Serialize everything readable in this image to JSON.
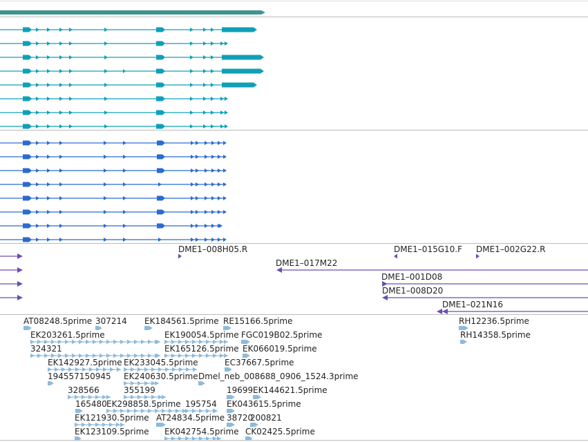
{
  "colors": {
    "top_feature": "#3f9393",
    "track_teal": "#0fa0b8",
    "track_blue": "#2b6bd0",
    "track_purple": "#6a4fb0",
    "track_est": "#8dbbdd",
    "separator": "#bbbbbb"
  },
  "tracks": {
    "top_feature": {
      "name": "gene-span"
    },
    "teal_transcripts": {
      "rows": [
        {
          "end": 372,
          "thick_end": true
        },
        {
          "end": 330,
          "thick_end": false
        },
        {
          "end": 382,
          "thick_end": true
        },
        {
          "end": 382,
          "thick_end": true,
          "extra_arrow": 178
        },
        {
          "end": 372,
          "thick_end": true
        },
        {
          "end": 330,
          "thick_end": false
        },
        {
          "end": 330,
          "thick_end": false
        },
        {
          "end": 330,
          "thick_end": false
        }
      ]
    },
    "blue_transcripts": {
      "rows": [
        {
          "end": 328,
          "big_exon": true
        },
        {
          "end": 328,
          "big_exon": true
        },
        {
          "end": 328,
          "big_exon": true
        },
        {
          "end": 328,
          "big_exon": false
        },
        {
          "end": 328,
          "big_exon": true
        },
        {
          "end": 328,
          "big_exon": true
        },
        {
          "end": 322,
          "big_exon": true
        },
        {
          "end": 328,
          "big_exon": false
        }
      ]
    },
    "purple_clones": {
      "labels": [
        {
          "text": "DME1–008H05.R"
        },
        {
          "text": "DME1–015G10.F"
        },
        {
          "text": "DME1–002G22.R"
        },
        {
          "text": "DME1–017M22"
        },
        {
          "text": "DME1–001D08"
        },
        {
          "text": "DME1–008D20"
        },
        {
          "text": "DME1–021N16"
        }
      ]
    },
    "est_alignments": {
      "labels": [
        {
          "text": "AT08248.5prime"
        },
        {
          "text": "307214"
        },
        {
          "text": "EK184561.5prime"
        },
        {
          "text": "RE15166.5prime"
        },
        {
          "text": "RH12236.5prime"
        },
        {
          "text": "EK203261.5prime"
        },
        {
          "text": "EK190054.5prime"
        },
        {
          "text": "FGC019B02.5prime"
        },
        {
          "text": "RH14358.5prime"
        },
        {
          "text": "324321"
        },
        {
          "text": "EK165126.5prime"
        },
        {
          "text": "EK066019.5prime"
        },
        {
          "text": "EK142927.5prime"
        },
        {
          "text": "EK233045.5prime"
        },
        {
          "text": "EC37667.5prime"
        },
        {
          "text": "194557150945"
        },
        {
          "text": "EK240630.5prime"
        },
        {
          "text": "Dmel_neb_008688_0906_1524.3prime"
        },
        {
          "text": "328566"
        },
        {
          "text": "355199"
        },
        {
          "text": "19699"
        },
        {
          "text": "EK144621.5prime"
        },
        {
          "text": "165480"
        },
        {
          "text": "EK298858.5prime"
        },
        {
          "text": "195754"
        },
        {
          "text": "EK043615.5prime"
        },
        {
          "text": "EK121930.5prime"
        },
        {
          "text": "AT24834.5prime"
        },
        {
          "text": "38720"
        },
        {
          "text": "200821"
        },
        {
          "text": "EK123109.5prime"
        },
        {
          "text": "EK042754.5prime"
        },
        {
          "text": "CK02425.5prime"
        }
      ]
    }
  }
}
